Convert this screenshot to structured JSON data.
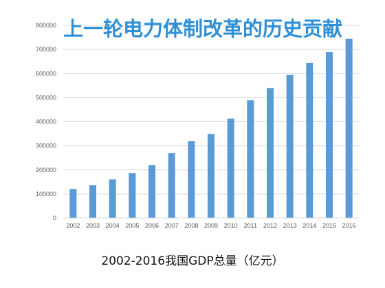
{
  "caption": "2002-2016我国GDP总量（亿元）",
  "colors": {
    "bar": "#5b9bd5",
    "grid": "#d9d9d9",
    "title": "#2e8fd6"
  },
  "chart_data": {
    "type": "bar",
    "title": "上一轮电力体制改革的历史贡献",
    "categories": [
      "2002",
      "2003",
      "2004",
      "2005",
      "2006",
      "2007",
      "2008",
      "2009",
      "2010",
      "2011",
      "2012",
      "2013",
      "2014",
      "2015",
      "2016"
    ],
    "values": [
      120000,
      136000,
      161000,
      187000,
      219000,
      270000,
      319000,
      349000,
      413000,
      489000,
      540000,
      595000,
      644000,
      689000,
      744000
    ],
    "y_ticks": [
      "0",
      "100000",
      "200000",
      "300000",
      "400000",
      "500000",
      "600000",
      "700000",
      "800000"
    ],
    "ylim": [
      0,
      800000
    ],
    "grid": true,
    "legend": "none"
  }
}
